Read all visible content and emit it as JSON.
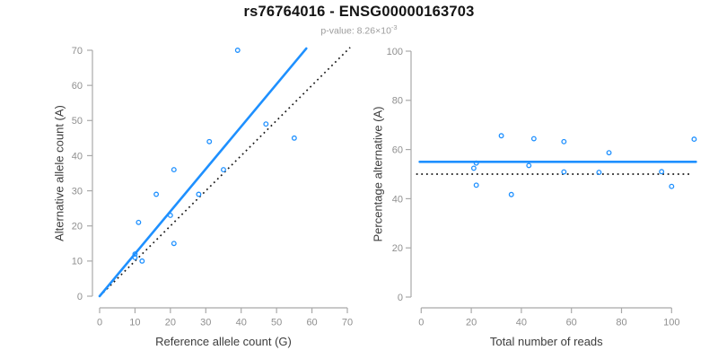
{
  "header": {
    "title": "rs76764016 - ENSG00000163703",
    "subtitle_prefix": "p-value: 8.26×10",
    "subtitle_exponent": "-3"
  },
  "palette": {
    "accent_blue": "#1E90FF",
    "reference_black": "#1A1A1A",
    "tick_gray": "#8F8F8F",
    "axis_title_color": "#3C3C3C",
    "axis_line_gray": "#A9A9A9"
  },
  "chart_data": [
    {
      "type": "scatter",
      "panel": "left",
      "xlabel": "Reference allele count (G)",
      "ylabel": "Alternative allele count (A)",
      "xlim": [
        0,
        70
      ],
      "ylim": [
        0,
        70
      ],
      "xticks": [
        0,
        10,
        20,
        30,
        40,
        50,
        60,
        70
      ],
      "yticks": [
        0,
        10,
        20,
        30,
        40,
        50,
        60,
        70
      ],
      "grid": false,
      "points": [
        [
          10,
          11
        ],
        [
          10,
          12
        ],
        [
          11,
          21
        ],
        [
          12,
          10
        ],
        [
          16,
          29
        ],
        [
          20,
          23
        ],
        [
          21,
          15
        ],
        [
          21,
          36
        ],
        [
          28,
          29
        ],
        [
          31,
          44
        ],
        [
          35,
          36
        ],
        [
          39,
          70
        ],
        [
          47,
          49
        ],
        [
          55,
          45
        ]
      ],
      "lines": [
        {
          "name": "identity-line",
          "style": "dotted",
          "color_key": "reference_black",
          "x1": 0,
          "y1": 0,
          "x2": 70.8,
          "y2": 70.8
        },
        {
          "name": "fit-line",
          "style": "solid",
          "color_key": "accent_blue",
          "x1": 0,
          "y1": 0,
          "x2": 58.4,
          "y2": 70.5
        }
      ]
    },
    {
      "type": "scatter",
      "panel": "right",
      "xlabel": "Total number of reads",
      "ylabel": "Percentage alternative (A)",
      "xlim": [
        0,
        110
      ],
      "ylim": [
        0,
        100
      ],
      "xticks": [
        0,
        20,
        40,
        60,
        80,
        100
      ],
      "yticks": [
        0,
        20,
        40,
        60,
        80,
        100
      ],
      "grid": false,
      "points": [
        [
          21,
          52.4
        ],
        [
          22,
          54.5
        ],
        [
          22,
          45.5
        ],
        [
          32,
          65.6
        ],
        [
          36,
          41.7
        ],
        [
          43,
          53.5
        ],
        [
          45,
          64.4
        ],
        [
          57,
          63.2
        ],
        [
          57,
          50.9
        ],
        [
          71,
          50.7
        ],
        [
          75,
          58.7
        ],
        [
          96,
          51.0
        ],
        [
          100,
          45.0
        ],
        [
          109,
          64.2
        ]
      ],
      "lines": [
        {
          "name": "null-line",
          "style": "dotted",
          "color_key": "reference_black",
          "x1": -2,
          "y1": 50,
          "x2": 107.5,
          "y2": 50
        },
        {
          "name": "mean-line",
          "style": "solid",
          "color_key": "accent_blue",
          "x1": -0.6,
          "y1": 55,
          "x2": 109.7,
          "y2": 55
        }
      ]
    }
  ]
}
